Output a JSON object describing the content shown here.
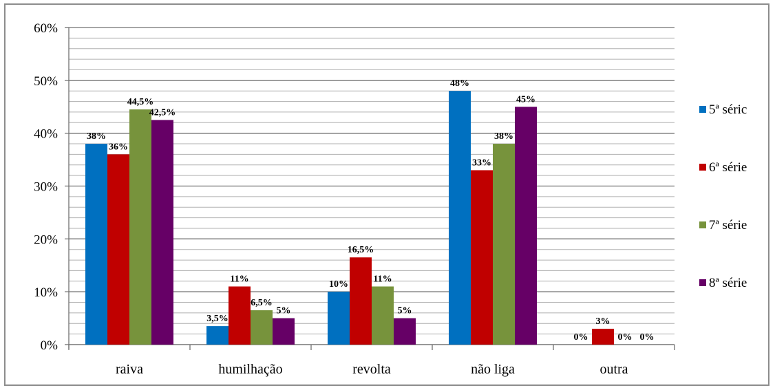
{
  "chart_data": {
    "type": "bar",
    "categories": [
      "raiva",
      "humilhação",
      "revolta",
      "não liga",
      "outra"
    ],
    "series": [
      {
        "name": "5ª séric",
        "color": "#0070c0",
        "values": [
          38,
          3.5,
          10,
          48,
          0
        ],
        "labels": [
          "38%",
          "3,5%",
          "10%",
          "48%",
          "0%"
        ]
      },
      {
        "name": "6ª série",
        "color": "#c00000",
        "values": [
          36,
          11,
          16.5,
          33,
          3
        ],
        "labels": [
          "36%",
          "11%",
          "16,5%",
          "33%",
          "3%"
        ]
      },
      {
        "name": "7ª série",
        "color": "#77933c",
        "values": [
          44.5,
          6.5,
          11,
          38,
          0
        ],
        "labels": [
          "44,5%",
          "6,5%",
          "11%",
          "38%",
          "0%"
        ]
      },
      {
        "name": "8ª série",
        "color": "#660066",
        "values": [
          42.5,
          5,
          5,
          45,
          0
        ],
        "labels": [
          "42,5%",
          "5%",
          "5%",
          "45%",
          "0%"
        ]
      }
    ],
    "ylim": [
      0,
      60
    ],
    "yticks": [
      0,
      10,
      20,
      30,
      40,
      50,
      60
    ],
    "ytick_labels": [
      "0%",
      "10%",
      "20%",
      "30%",
      "40%",
      "50%",
      "60%"
    ],
    "minor_gridline_step": 2,
    "grid": true,
    "legend_position": "right"
  }
}
